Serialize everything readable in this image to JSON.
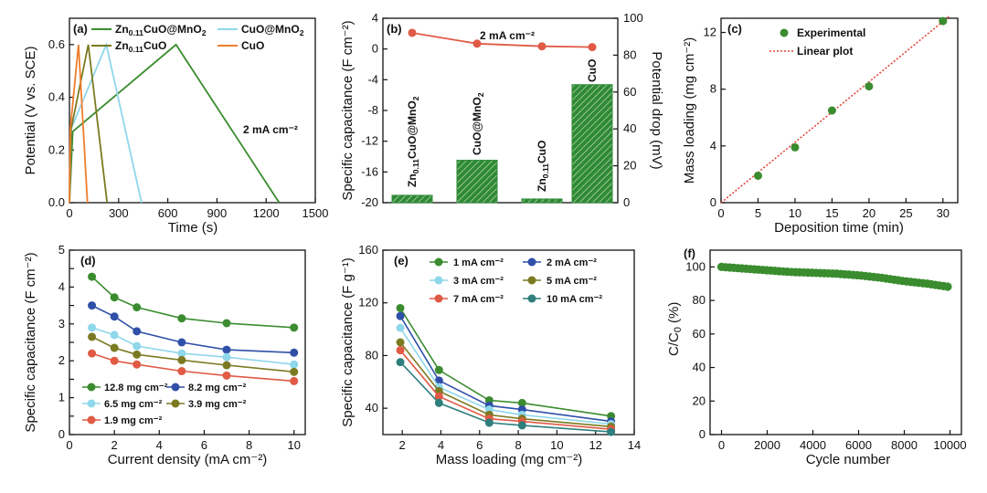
{
  "colors": {
    "green": "#3a8c2f",
    "olive": "#7b7a22",
    "lightblue": "#8fd7ea",
    "orange": "#ef7d2a",
    "red": "#e05a45",
    "blue": "#2f4fa8",
    "teal": "#2e7f7d",
    "bar_green": "#2f8a36",
    "right_axis_green": "#4b9a3a"
  },
  "chart_data": [
    {
      "panel": "(a)",
      "type": "line",
      "xlabel": "Time (s)",
      "ylabel": "Potential (V vs. SCE)",
      "xlim": [
        0,
        1500
      ],
      "ylim": [
        0.0,
        0.7
      ],
      "xticks": [
        0,
        300,
        600,
        900,
        1200,
        1500
      ],
      "yticks": [
        0.0,
        0.2,
        0.4,
        0.6
      ],
      "annotation": "2 mA cm⁻²",
      "series": [
        {
          "name": "Zn0.11CuO@MnO2",
          "legend": [
            "Zn",
            "0.11",
            "CuO@MnO",
            "2",
            ""
          ],
          "color": "green",
          "x": [
            0,
            20,
            650,
            1280
          ],
          "y": [
            0.0,
            0.27,
            0.6,
            0.0
          ]
        },
        {
          "name": "CuO@MnO2",
          "legend": [
            "CuO@MnO",
            "2",
            ""
          ],
          "color": "lightblue",
          "x": [
            0,
            10,
            225,
            440
          ],
          "y": [
            0.0,
            0.28,
            0.6,
            0.0
          ]
        },
        {
          "name": "Zn0.11CuO",
          "legend": [
            "Zn",
            "0.11",
            "CuO"
          ],
          "color": "olive",
          "x": [
            0,
            10,
            115,
            230
          ],
          "y": [
            0.0,
            0.28,
            0.6,
            0.0
          ]
        },
        {
          "name": "CuO",
          "legend": [
            "CuO"
          ],
          "color": "orange",
          "x": [
            0,
            5,
            55,
            110
          ],
          "y": [
            0.0,
            0.28,
            0.6,
            0.0
          ]
        }
      ]
    },
    {
      "panel": "(b)",
      "type": "bar",
      "ylabel_left": "Specific capacitance (F cm⁻²)",
      "ylabel_right": "Potential drop (mV)",
      "ylim_left": [
        -20,
        4
      ],
      "ylim_right": [
        0,
        100
      ],
      "yticks_left": [
        4,
        0,
        -4,
        -8,
        -12,
        -16,
        -20
      ],
      "yticks_right": [
        0,
        20,
        40,
        60,
        80,
        100
      ],
      "annotation": "2 mA cm⁻²",
      "categories": [
        "Zn0.11CuO@MnO2",
        "CuO@MnO2",
        "Zn0.11CuO",
        "CuO"
      ],
      "category_labels": [
        [
          "Zn",
          "0.11",
          "CuO@MnO",
          "2"
        ],
        [
          "CuO@MnO",
          "2",
          "",
          ""
        ],
        [
          "Zn",
          "0.11",
          "CuO",
          ""
        ],
        [
          "CuO",
          "",
          "",
          ""
        ]
      ],
      "capacitance": [
        2.1,
        0.7,
        0.35,
        0.25
      ],
      "potential_drop": [
        4,
        23,
        2,
        64
      ]
    },
    {
      "panel": "(c)",
      "type": "scatter",
      "xlabel": "Deposition time (min)",
      "ylabel": "Mass loading (mg cm⁻²)",
      "xlim": [
        0,
        32
      ],
      "ylim": [
        0,
        13
      ],
      "xticks": [
        0,
        5,
        10,
        15,
        20,
        25,
        30
      ],
      "yticks": [
        0,
        4,
        8,
        12
      ],
      "series": [
        {
          "name": "Experimental",
          "x": [
            5,
            10,
            15,
            20,
            30
          ],
          "y": [
            1.9,
            3.9,
            6.5,
            8.2,
            12.8
          ]
        },
        {
          "name": "Linear plot",
          "x": [
            0,
            31
          ],
          "y": [
            0,
            13.2
          ]
        }
      ]
    },
    {
      "panel": "(d)",
      "type": "line",
      "xlabel": "Current density (mA cm⁻²)",
      "ylabel": "Specific capacitance (F cm⁻²)",
      "xlim": [
        0,
        10.5
      ],
      "ylim": [
        0,
        5
      ],
      "xticks": [
        0,
        2,
        4,
        6,
        8,
        10
      ],
      "yticks": [
        0,
        0.5,
        1,
        1.5,
        2,
        2.5,
        3,
        3.5,
        4,
        4.5,
        5
      ],
      "ytick_labels": [
        "0",
        "",
        "1",
        "",
        "2",
        "",
        "3",
        "",
        "4",
        "",
        "5"
      ],
      "x": [
        1,
        2,
        3,
        5,
        7,
        10
      ],
      "series": [
        {
          "name": "12.8 mg cm⁻²",
          "color": "green",
          "values": [
            4.28,
            3.72,
            3.45,
            3.15,
            3.02,
            2.9
          ]
        },
        {
          "name": "8.2 mg cm⁻²",
          "color": "blue",
          "values": [
            3.5,
            3.2,
            2.8,
            2.5,
            2.3,
            2.22
          ]
        },
        {
          "name": "6.5 mg cm⁻²",
          "color": "lightblue",
          "values": [
            2.9,
            2.7,
            2.4,
            2.2,
            2.1,
            1.9
          ]
        },
        {
          "name": "3.9 mg cm⁻²",
          "color": "olive",
          "values": [
            2.65,
            2.35,
            2.17,
            2.02,
            1.88,
            1.7
          ]
        },
        {
          "name": "1.9 mg cm⁻²",
          "color": "red",
          "values": [
            2.2,
            2.0,
            1.9,
            1.72,
            1.6,
            1.45
          ]
        }
      ]
    },
    {
      "panel": "(e)",
      "type": "line",
      "xlabel": "Mass loading (mg cm⁻²)",
      "ylabel": "Specific capacitance (F g⁻¹)",
      "xlim": [
        1,
        14
      ],
      "ylim": [
        20,
        160
      ],
      "xticks": [
        2,
        4,
        6,
        8,
        10,
        12,
        14
      ],
      "yticks": [
        40,
        80,
        120,
        160
      ],
      "x": [
        1.9,
        3.9,
        6.5,
        8.2,
        12.8
      ],
      "series": [
        {
          "name": "1 mA cm⁻²",
          "color": "green",
          "values": [
            116,
            69,
            46,
            44,
            34
          ]
        },
        {
          "name": "2 mA cm⁻²",
          "color": "blue",
          "values": [
            110,
            61,
            42,
            39,
            30
          ]
        },
        {
          "name": "3 mA cm⁻²",
          "color": "lightblue",
          "values": [
            101,
            56,
            39,
            35,
            28
          ]
        },
        {
          "name": "5 mA cm⁻²",
          "color": "olive",
          "values": [
            90,
            53,
            35,
            32,
            26
          ]
        },
        {
          "name": "7 mA cm⁻²",
          "color": "red",
          "values": [
            84,
            49,
            32,
            30,
            24
          ]
        },
        {
          "name": "10 mA cm⁻²",
          "color": "teal",
          "values": [
            75,
            44,
            29,
            27,
            22
          ]
        }
      ]
    },
    {
      "panel": "(f)",
      "type": "scatter",
      "xlabel": "Cycle number",
      "ylabel": "C/C₀ (%)",
      "ylabel_parts": [
        "C/C",
        "0",
        " (%)"
      ],
      "xlim": [
        -500,
        10500
      ],
      "ylim": [
        0,
        110
      ],
      "xticks": [
        0,
        2000,
        4000,
        6000,
        8000,
        10000
      ],
      "yticks": [
        0,
        20,
        40,
        60,
        80,
        100
      ],
      "series": [
        {
          "name": "retention",
          "x": [
            0,
            1000,
            2000,
            3000,
            4000,
            5000,
            6000,
            7000,
            8000,
            9000,
            10000
          ],
          "y": [
            100,
            99,
            98,
            97,
            96.5,
            96,
            95,
            93.5,
            91.5,
            90,
            88
          ]
        }
      ]
    }
  ]
}
